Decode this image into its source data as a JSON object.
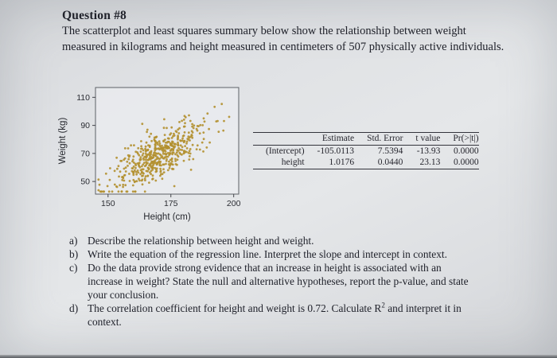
{
  "page": {
    "title": "Question #8",
    "intro_line1": "The scatterplot and least squares summary below show the relationship between weight",
    "intro_line2": "measured in kilograms and height measured in centimeters of 507 physically active individuals."
  },
  "chart_data": {
    "type": "scatter",
    "title": "",
    "xlabel": "Height (cm)",
    "ylabel": "Weight (kg)",
    "x_ticks": [
      150,
      175,
      200
    ],
    "y_ticks": [
      50,
      70,
      90,
      110
    ],
    "xlim": [
      145,
      202
    ],
    "ylim": [
      41,
      117
    ],
    "n_points": 507,
    "point_color": "#b3902f",
    "regression": {
      "intercept": -105.0113,
      "slope": 1.0176
    },
    "correlation_r": 0.72,
    "x_mean": 170.5,
    "x_sd": 9,
    "residual_sd": 9,
    "seed": 12,
    "grid": false,
    "legend": false
  },
  "summary_table": {
    "headers": [
      "",
      "Estimate",
      "Std. Error",
      "t value",
      "Pr(>|t|)"
    ],
    "rows": [
      {
        "label": "(Intercept)",
        "values": [
          "-105.0113",
          "7.5394",
          "-13.93",
          "0.0000"
        ]
      },
      {
        "label": "height",
        "values": [
          "1.0176",
          "0.0440",
          "23.13",
          "0.0000"
        ]
      }
    ]
  },
  "questions": {
    "a": {
      "label": "a)",
      "text": "Describe the relationship between height and weight."
    },
    "b": {
      "label": "b)",
      "text": "Write the equation of the regression line. Interpret the slope and intercept in context."
    },
    "c": {
      "label": "c)",
      "line1": "Do the data provide strong evidence that an increase in height is associated with an",
      "line2": "increase in weight? State the null and alternative hypotheses, report the p-value, and state",
      "line3": "your conclusion."
    },
    "d": {
      "label": "d)",
      "pre": "The correlation coefficient for height and weight is 0.72. Calculate R",
      "sup": "2",
      "post": " and interpret it in",
      "line2": "context."
    }
  }
}
